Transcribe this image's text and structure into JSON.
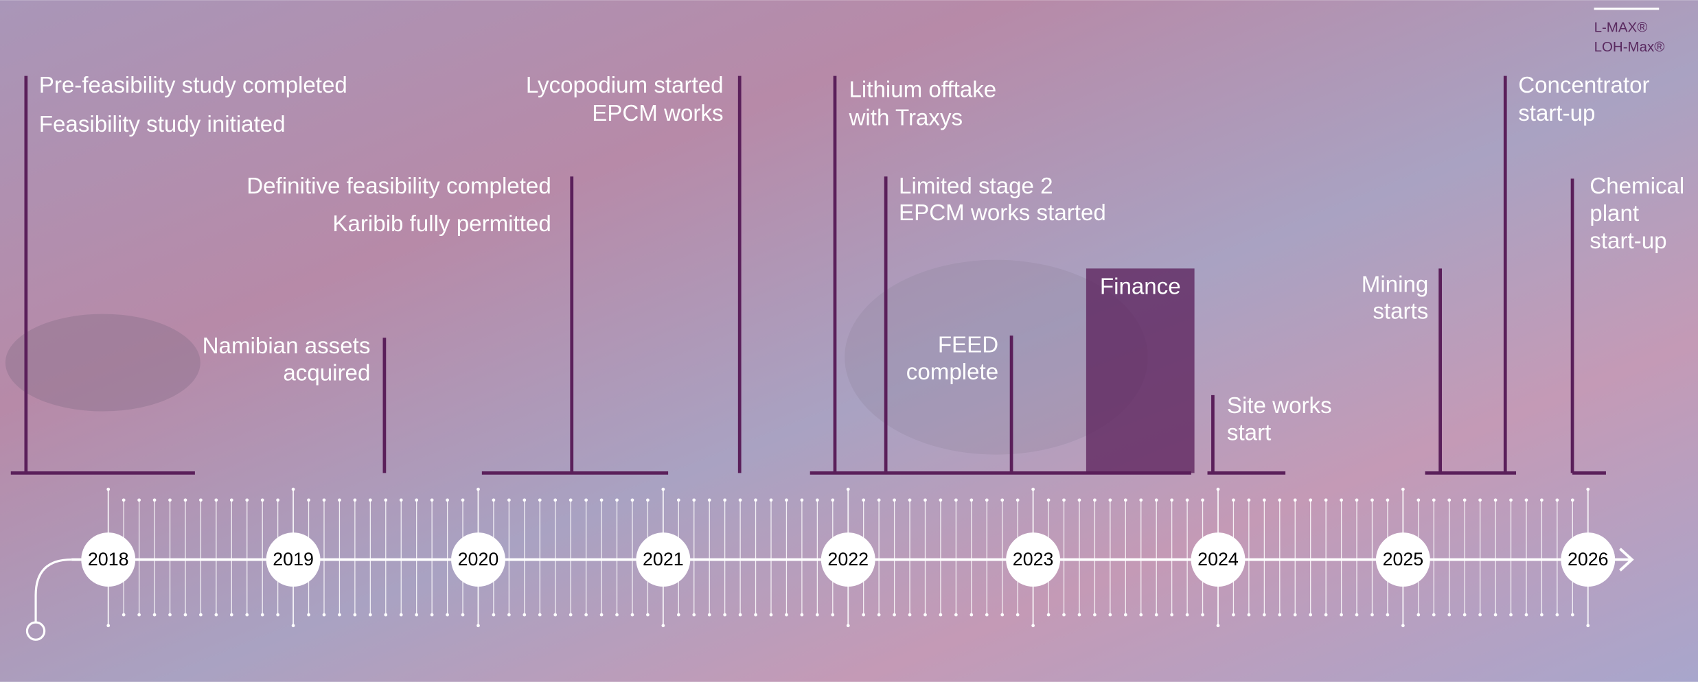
{
  "brand": [
    "L-MAX®",
    "LOH-Max®"
  ],
  "years": [
    "2018",
    "2019",
    "2020",
    "2021",
    "2022",
    "2023",
    "2024",
    "2025",
    "2026"
  ],
  "milestones": [
    {
      "lines": [
        "Pre-feasibility study completed"
      ]
    },
    {
      "lines": [
        "Feasibility study initiated"
      ]
    },
    {
      "lines": [
        "Namibian assets",
        "acquired"
      ]
    },
    {
      "lines": [
        "Definitive feasibility completed"
      ]
    },
    {
      "lines": [
        "Karibib fully permitted"
      ]
    },
    {
      "lines": [
        "Lycopodium started",
        "EPCM works"
      ]
    },
    {
      "lines": [
        "Lithium offtake",
        "with Traxys"
      ]
    },
    {
      "lines": [
        "Limited stage 2",
        "EPCM works started"
      ]
    },
    {
      "lines": [
        "FEED",
        "complete"
      ]
    },
    {
      "lines": [
        "Finance"
      ]
    },
    {
      "lines": [
        "Site works",
        "start"
      ]
    },
    {
      "lines": [
        "Mining",
        "starts"
      ]
    },
    {
      "lines": [
        "Concentrator",
        "start-up"
      ]
    },
    {
      "lines": [
        "Chemical",
        "plant",
        "start-up"
      ]
    }
  ]
}
